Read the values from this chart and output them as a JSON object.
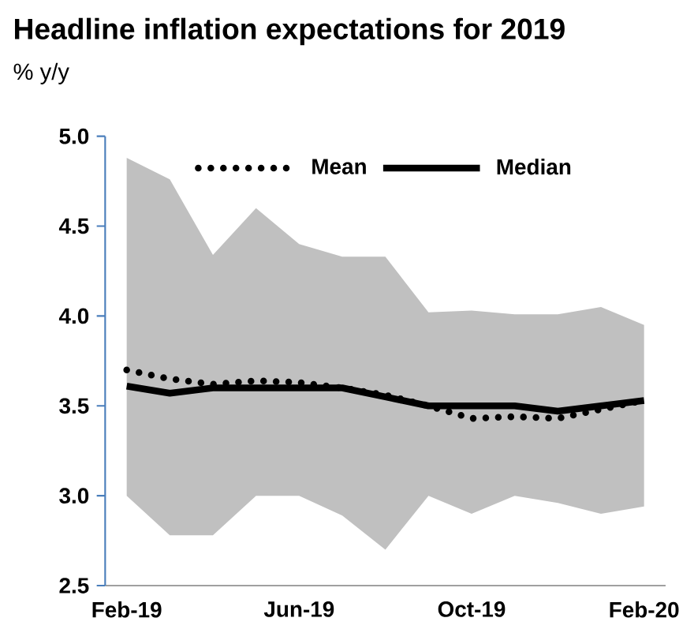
{
  "chart_data": {
    "type": "line",
    "title": "Headline inflation expectations for 2019",
    "subtitle": "% y/y",
    "categories": [
      "Feb-19",
      null,
      null,
      null,
      "Jun-19",
      null,
      null,
      null,
      "Oct-19",
      null,
      null,
      null,
      "Feb-20"
    ],
    "ylim": [
      2.5,
      5.0
    ],
    "yticks": [
      {
        "value": 2.5,
        "label": "2.5"
      },
      {
        "value": 3.0,
        "label": "3.0"
      },
      {
        "value": 3.5,
        "label": "3.5"
      },
      {
        "value": 4.0,
        "label": "4.0"
      },
      {
        "value": 4.5,
        "label": "4.5"
      },
      {
        "value": 5.0,
        "label": "5.0"
      }
    ],
    "legend": "top",
    "grid": false,
    "marker": "none",
    "series": [
      {
        "name": "Mean",
        "color": "#000000",
        "line_style": "dotted",
        "values": [
          3.7,
          3.65,
          3.62,
          3.64,
          3.63,
          3.6,
          3.56,
          3.5,
          3.43,
          3.44,
          3.43,
          3.48,
          3.53
        ]
      },
      {
        "name": "Median",
        "color": "#000000",
        "line_style": "solid",
        "values": [
          3.61,
          3.57,
          3.6,
          3.6,
          3.6,
          3.6,
          3.55,
          3.5,
          3.5,
          3.5,
          3.47,
          3.5,
          3.53
        ],
        "lower": [
          3.0,
          2.78,
          2.78,
          3.0,
          3.0,
          2.89,
          2.7,
          3.0,
          2.9,
          3.0,
          2.96,
          2.9,
          2.94
        ],
        "upper": [
          4.88,
          4.76,
          4.34,
          4.6,
          4.4,
          4.33,
          4.33,
          4.02,
          4.03,
          4.01,
          4.01,
          4.05,
          3.95
        ]
      }
    ]
  }
}
